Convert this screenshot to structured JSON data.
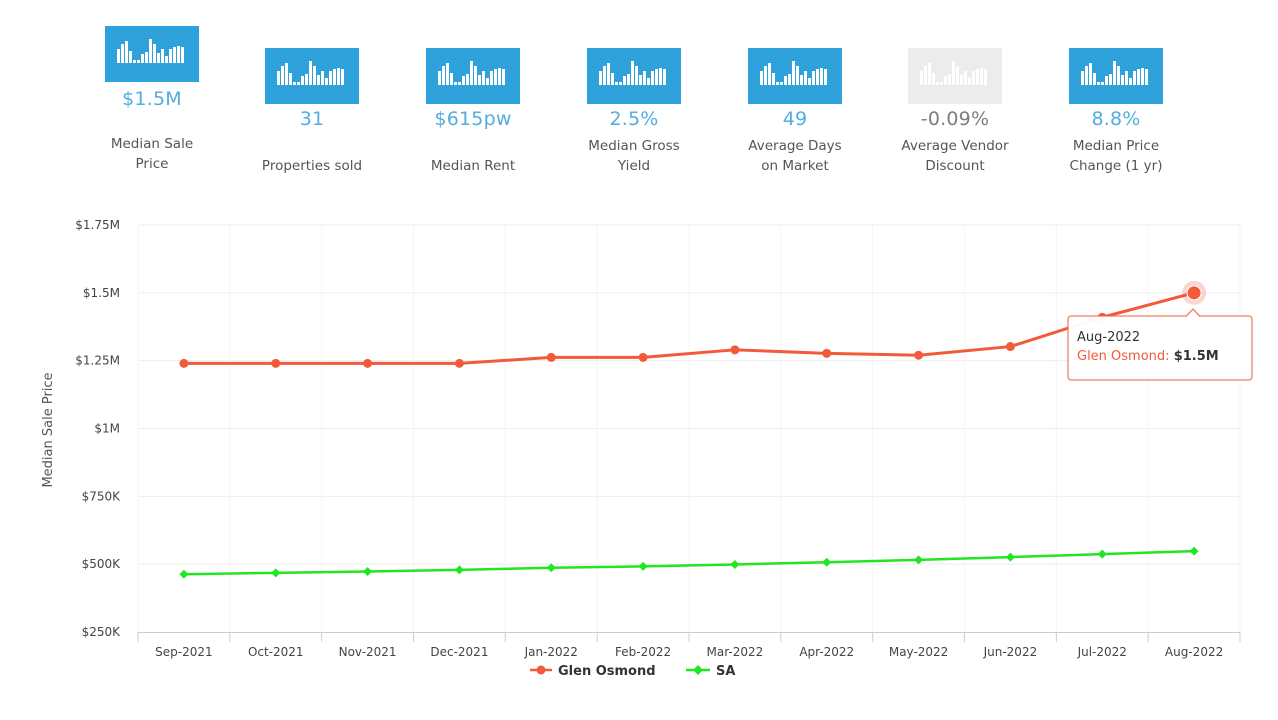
{
  "tiles": [
    {
      "value": "$1.5M",
      "label_line1": "Median Sale",
      "label_line2": "Price",
      "active": true,
      "selected": true,
      "icon": "bar-chart-icon"
    },
    {
      "value": "31",
      "label_line1": "Properties sold",
      "label_line2": "",
      "active": true,
      "selected": false,
      "icon": "bar-chart-icon"
    },
    {
      "value": "$615pw",
      "label_line1": "Median Rent",
      "label_line2": "",
      "active": true,
      "selected": false,
      "icon": "bar-chart-icon"
    },
    {
      "value": "2.5%",
      "label_line1": "Median Gross",
      "label_line2": "Yield",
      "active": true,
      "selected": false,
      "icon": "bar-chart-icon"
    },
    {
      "value": "49",
      "label_line1": "Average Days",
      "label_line2": "on Market",
      "active": true,
      "selected": false,
      "icon": "bar-chart-icon"
    },
    {
      "value": "-0.09%",
      "label_line1": "Average Vendor",
      "label_line2": "Discount",
      "active": false,
      "selected": false,
      "icon": "bar-chart-icon"
    },
    {
      "value": "8.8%",
      "label_line1": "Median Price",
      "label_line2": "Change (1 yr)",
      "active": true,
      "selected": false,
      "icon": "bar-chart-icon"
    }
  ],
  "colors": {
    "accent": "#2fa2dc",
    "value_text": "#52aede",
    "inactive_tile": "#ececec",
    "glen_osmond": "#f15a3a",
    "sa": "#22e622"
  },
  "chart_data": {
    "type": "line",
    "ylabel": "Median Sale Price",
    "xlabel": "",
    "ylim": [
      250000,
      1750000
    ],
    "yticks": [
      250000,
      500000,
      750000,
      1000000,
      1250000,
      1500000,
      1750000
    ],
    "ytick_labels": [
      "$250K",
      "$500K",
      "$750K",
      "$1M",
      "$1.25M",
      "$1.5M",
      "$1.75M"
    ],
    "categories": [
      "Sep-2021",
      "Oct-2021",
      "Nov-2021",
      "Dec-2021",
      "Jan-2022",
      "Feb-2022",
      "Mar-2022",
      "Apr-2022",
      "May-2022",
      "Jun-2022",
      "Jul-2022",
      "Aug-2022"
    ],
    "series": [
      {
        "name": "Glen Osmond",
        "marker": "circle",
        "values": [
          1240000,
          1240000,
          1240000,
          1240000,
          1262000,
          1262000,
          1290000,
          1277000,
          1270000,
          1302000,
          1410000,
          1500000
        ]
      },
      {
        "name": "SA",
        "marker": "diamond",
        "values": [
          463000,
          468000,
          473000,
          479000,
          487000,
          492000,
          499000,
          507000,
          516000,
          526000,
          537000,
          548000
        ]
      }
    ],
    "legend_position": "bottom-center",
    "tooltip": {
      "title": "Aug-2022",
      "series": "Glen Osmond",
      "value": "$1.5M",
      "point_index": 11
    }
  }
}
